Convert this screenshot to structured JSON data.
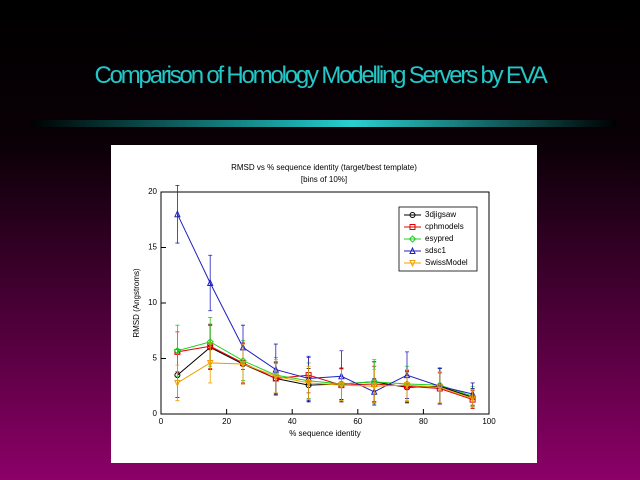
{
  "slide_title": "Comparison of Homology Modelling Servers by EVA",
  "chart_data": {
    "type": "line",
    "title": "RMSD vs % sequence identity (target/best template)",
    "subtitle": "[bins of 10%]",
    "xlabel": "% sequence identity",
    "ylabel": "RMSD (Angstroms)",
    "x": [
      5,
      15,
      25,
      35,
      45,
      55,
      65,
      75,
      85,
      95
    ],
    "xlim": [
      0,
      100
    ],
    "xticks": [
      0,
      20,
      40,
      60,
      80,
      100
    ],
    "ylim": [
      0,
      20
    ],
    "yticks": [
      0,
      5,
      10,
      15,
      20
    ],
    "legend": "upper right",
    "series": [
      {
        "name": "3djigsaw",
        "color": "#000000",
        "marker": "circle",
        "values": [
          3.5,
          6.0,
          4.5,
          3.2,
          2.6,
          2.7,
          2.9,
          2.4,
          2.5,
          1.5
        ],
        "errors": [
          2.0,
          2.0,
          1.8,
          1.4,
          1.5,
          1.4,
          1.8,
          1.4,
          1.6,
          0.8
        ]
      },
      {
        "name": "cphmodels",
        "color": "#e00000",
        "marker": "square",
        "values": [
          5.6,
          6.1,
          4.6,
          3.2,
          3.5,
          2.6,
          2.7,
          2.5,
          2.3,
          1.3
        ],
        "errors": [
          1.8,
          2.0,
          1.8,
          1.5,
          1.6,
          1.5,
          1.6,
          1.4,
          1.4,
          0.8
        ]
      },
      {
        "name": "esypred",
        "color": "#20d020",
        "marker": "diamond",
        "values": [
          5.7,
          6.5,
          4.8,
          3.5,
          3.0,
          2.7,
          2.9,
          2.7,
          2.6,
          1.6
        ],
        "errors": [
          2.3,
          2.2,
          1.8,
          1.6,
          1.6,
          1.5,
          2.0,
          1.6,
          1.6,
          0.9
        ]
      },
      {
        "name": "sdsc1",
        "color": "#2020c0",
        "marker": "triangle",
        "values": [
          18.0,
          11.8,
          6.0,
          4.0,
          3.2,
          3.4,
          2.0,
          3.5,
          2.5,
          1.8
        ],
        "errors": [
          2.6,
          2.5,
          2.0,
          2.3,
          2.0,
          2.3,
          1.2,
          2.1,
          1.6,
          1.0
        ]
      },
      {
        "name": "SwissModel",
        "color": "#f0a000",
        "marker": "triangle-down",
        "values": [
          2.8,
          4.6,
          4.5,
          3.4,
          2.8,
          2.6,
          2.5,
          2.6,
          2.4,
          1.4
        ],
        "errors": [
          1.6,
          1.8,
          1.8,
          1.5,
          1.5,
          1.4,
          1.5,
          1.4,
          1.4,
          0.8
        ]
      }
    ]
  }
}
